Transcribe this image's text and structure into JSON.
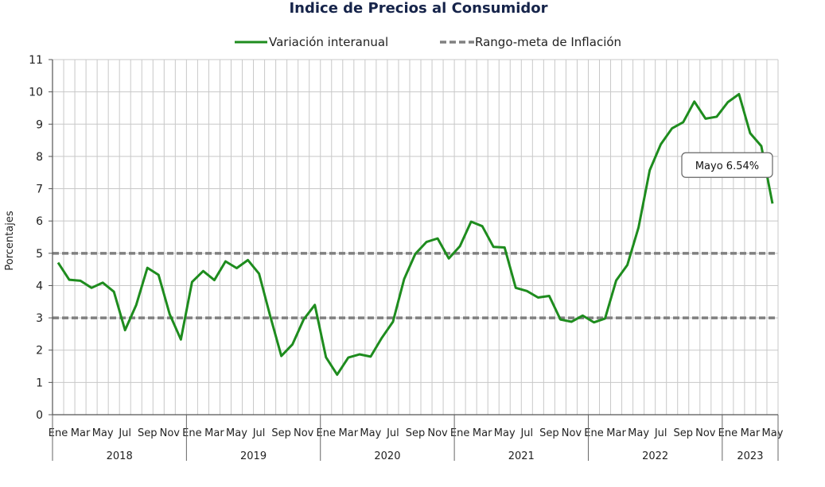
{
  "chart_data": {
    "type": "line",
    "title": "Indice de Precios al Consumidor",
    "ylabel": "Porcentajes",
    "ylim": [
      0,
      11
    ],
    "yticks": [
      "0",
      "1",
      "2",
      "3",
      "4",
      "5",
      "6",
      "7",
      "8",
      "9",
      "10",
      "11"
    ],
    "grid": true,
    "legend_position": "top",
    "month_labels": [
      "Ene",
      "Mar",
      "May",
      "Jul",
      "Sep",
      "Nov"
    ],
    "last_year_month_labels": [
      "Ene",
      "Mar",
      "May"
    ],
    "years": [
      "2018",
      "2019",
      "2020",
      "2021",
      "2022",
      "2023"
    ],
    "series": [
      {
        "name": "Variación interanual",
        "color": "#1e8c1e",
        "style": "solid",
        "values": [
          4.71,
          4.18,
          4.15,
          3.93,
          4.09,
          3.81,
          2.62,
          3.4,
          4.55,
          4.33,
          3.11,
          2.33,
          4.11,
          4.45,
          4.17,
          4.75,
          4.54,
          4.79,
          4.37,
          3.06,
          1.82,
          2.18,
          2.95,
          3.4,
          1.78,
          1.24,
          1.77,
          1.87,
          1.8,
          2.38,
          2.88,
          4.2,
          4.98,
          5.35,
          5.46,
          4.84,
          5.22,
          5.98,
          5.84,
          5.2,
          5.18,
          3.93,
          3.83,
          3.63,
          3.68,
          2.95,
          2.88,
          3.07,
          2.86,
          2.98,
          4.16,
          4.64,
          5.8,
          7.57,
          8.38,
          8.87,
          9.06,
          9.7,
          9.17,
          9.23,
          9.68,
          9.93,
          8.72,
          8.32,
          6.54
        ]
      },
      {
        "name": "Rango-meta de Inflación",
        "color": "#808080",
        "style": "dashed",
        "bands": [
          3,
          5
        ]
      }
    ],
    "annotation": {
      "text": "Mayo 6.54%",
      "index": 64
    }
  }
}
